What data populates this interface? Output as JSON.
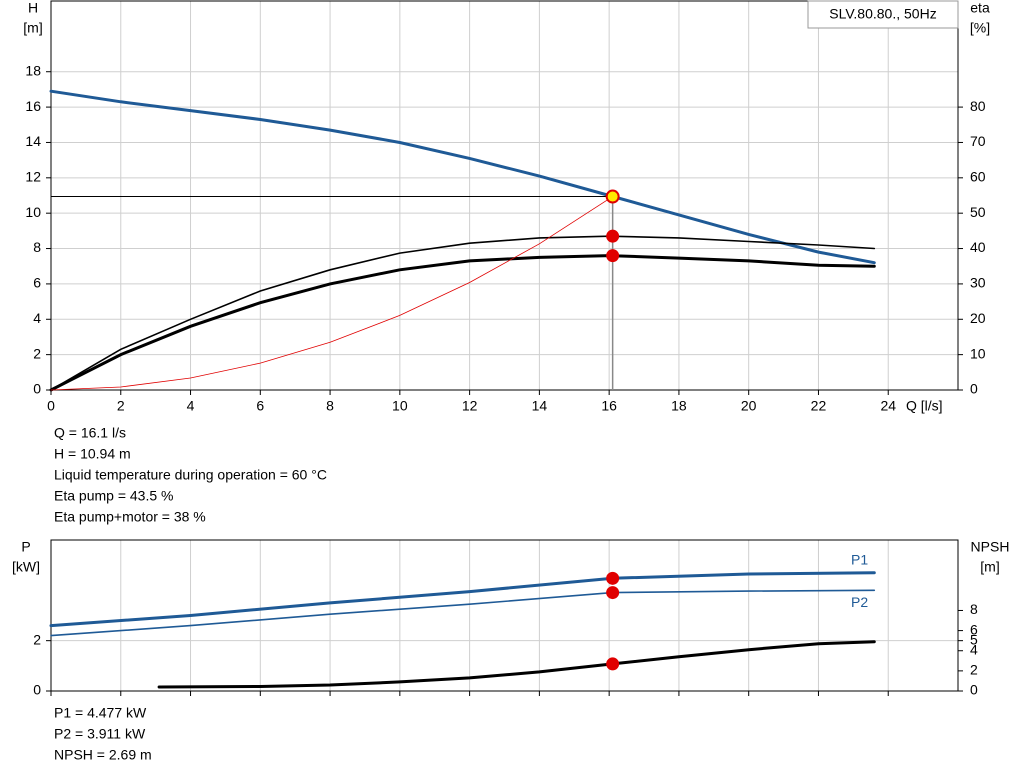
{
  "chart_data": [
    {
      "type": "line",
      "title": "SLV.80.80., 50Hz",
      "ylabel": [
        "H",
        "[m]"
      ],
      "y2label": [
        "eta",
        "[%]"
      ],
      "xlabel": "Q [l/s]",
      "xlim": [
        0,
        26
      ],
      "xticks": [
        0,
        2,
        4,
        6,
        8,
        10,
        12,
        14,
        16,
        18,
        20,
        22,
        24
      ],
      "ylim": [
        0,
        22
      ],
      "yticks": [
        0,
        2,
        4,
        6,
        8,
        10,
        12,
        14,
        16,
        18
      ],
      "y2lim": [
        0,
        110
      ],
      "y2ticks": [
        0,
        10,
        20,
        30,
        40,
        50,
        60,
        70,
        80
      ],
      "grid": true,
      "series": [
        {
          "color": "#1f5a96",
          "width": 3,
          "axis": "y",
          "x": [
            0,
            2,
            4,
            6,
            8,
            10,
            12,
            14,
            16,
            18,
            20,
            22,
            23.6
          ],
          "values": [
            16.9,
            16.3,
            15.8,
            15.3,
            14.7,
            14.0,
            13.1,
            12.1,
            11.0,
            9.9,
            8.8,
            7.8,
            7.2
          ]
        },
        {
          "color": "#000000",
          "width": 1.6,
          "axis": "y2",
          "x": [
            0,
            2,
            4,
            6,
            8,
            10,
            12,
            14,
            16,
            18,
            20,
            22,
            23.6
          ],
          "values": [
            0,
            11.5,
            20,
            28,
            34,
            38.7,
            41.5,
            43,
            43.5,
            43,
            42,
            41,
            40
          ]
        },
        {
          "color": "#000000",
          "width": 3,
          "axis": "y2",
          "x": [
            0,
            2,
            4,
            6,
            8,
            10,
            12,
            14,
            16,
            18,
            20,
            22,
            23.6
          ],
          "values": [
            0,
            10,
            18,
            24.7,
            30,
            34,
            36.5,
            37.5,
            38,
            37.3,
            36.5,
            35.3,
            35
          ]
        },
        {
          "color": "#e00000",
          "width": 0.8,
          "axis": "y",
          "x": [
            0,
            2,
            4,
            6,
            8,
            10,
            12,
            14,
            16.1
          ],
          "values": [
            0,
            0.17,
            0.68,
            1.52,
            2.7,
            4.22,
            6.08,
            8.27,
            10.94
          ]
        }
      ],
      "markers": [
        {
          "x": 16.1,
          "y": 10.94,
          "axis": "y",
          "color": "#ffe800",
          "edge": "#e00000",
          "guides": true
        },
        {
          "x": 16.1,
          "y": 43.5,
          "axis": "y2",
          "color": "#e00000"
        },
        {
          "x": 16.1,
          "y": 38,
          "axis": "y2",
          "color": "#e00000"
        }
      ],
      "notes": [
        "Q = 16.1 l/s",
        "H = 10.94 m",
        "Liquid temperature during operation = 60 °C",
        "Eta pump = 43.5 %",
        "Eta pump+motor = 38 %"
      ]
    },
    {
      "type": "line",
      "ylabel": [
        "P",
        "[kW]"
      ],
      "y2label": [
        "NPSH",
        "[m]"
      ],
      "xlim": [
        0,
        26
      ],
      "xticks": [
        0,
        2,
        4,
        6,
        8,
        10,
        12,
        14,
        16,
        18,
        20,
        22,
        24
      ],
      "ylim": [
        0,
        6
      ],
      "yticks": [
        0,
        2
      ],
      "y2lim": [
        0,
        15
      ],
      "y2ticks": [
        0,
        2,
        4,
        5,
        6,
        8
      ],
      "grid": true,
      "series": [
        {
          "name": "P1",
          "color": "#1f5a96",
          "width": 3,
          "axis": "y",
          "x": [
            0,
            4,
            8,
            12,
            16.1,
            20,
            23.6
          ],
          "values": [
            2.6,
            3.0,
            3.5,
            3.95,
            4.477,
            4.65,
            4.7
          ]
        },
        {
          "name": "P2",
          "color": "#1f5a96",
          "width": 1.6,
          "axis": "y",
          "x": [
            0,
            4,
            8,
            12,
            16.1,
            20,
            23.6
          ],
          "values": [
            2.2,
            2.6,
            3.05,
            3.45,
            3.911,
            3.97,
            4.0
          ]
        },
        {
          "color": "#000000",
          "width": 3,
          "axis": "y2",
          "x": [
            3.1,
            6,
            8,
            10,
            12,
            14,
            16.1,
            18,
            20,
            22,
            23.6
          ],
          "values": [
            0.4,
            0.45,
            0.6,
            0.9,
            1.3,
            1.9,
            2.69,
            3.4,
            4.1,
            4.7,
            4.9
          ]
        }
      ],
      "markers": [
        {
          "x": 16.1,
          "y": 4.477,
          "axis": "y",
          "color": "#e00000"
        },
        {
          "x": 16.1,
          "y": 3.911,
          "axis": "y",
          "color": "#e00000"
        },
        {
          "x": 16.1,
          "y": 2.69,
          "axis": "y2",
          "color": "#e00000"
        }
      ],
      "notes": [
        "P1 = 4.477 kW",
        "P2 = 3.911 kW",
        "NPSH = 2.69 m"
      ]
    }
  ]
}
